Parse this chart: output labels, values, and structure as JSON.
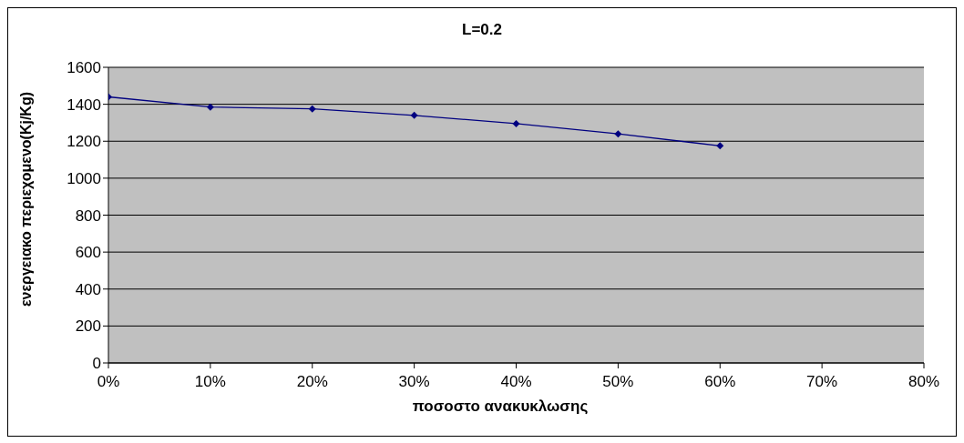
{
  "chart_data": {
    "type": "line",
    "title": "L=0.2",
    "xlabel": "ποσοστο ανακυκλωσης",
    "ylabel": "ενεργειακο περιεχομενο(Kj/Kg)",
    "x": [
      0,
      10,
      20,
      30,
      40,
      50,
      60
    ],
    "series": [
      {
        "color": "#000080",
        "values": [
          1440,
          1385,
          1375,
          1340,
          1295,
          1240,
          1175
        ]
      }
    ],
    "xlim": [
      0,
      80
    ],
    "xticks": [
      {
        "value": 0,
        "label": "0%"
      },
      {
        "value": 10,
        "label": "10%"
      },
      {
        "value": 20,
        "label": "20%"
      },
      {
        "value": 30,
        "label": "30%"
      },
      {
        "value": 40,
        "label": "40%"
      },
      {
        "value": 50,
        "label": "50%"
      },
      {
        "value": 60,
        "label": "60%"
      },
      {
        "value": 70,
        "label": "70%"
      },
      {
        "value": 80,
        "label": "80%"
      }
    ],
    "ylim": [
      0,
      1600
    ],
    "yticks": [
      0,
      200,
      400,
      600,
      800,
      1000,
      1200,
      1400,
      1600
    ],
    "grid": "y",
    "legend": false,
    "marker": "diamond",
    "line_style": "solid"
  }
}
